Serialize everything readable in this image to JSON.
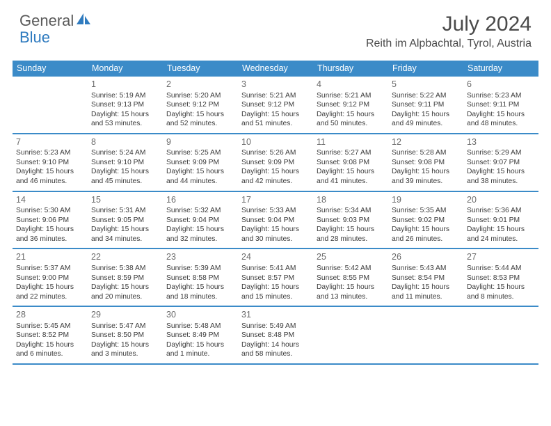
{
  "brand": {
    "word1": "General",
    "word2": "Blue"
  },
  "title": "July 2024",
  "location": "Reith im Alpbachtal, Tyrol, Austria",
  "colors": {
    "header_bg": "#3b8bc8",
    "header_text": "#ffffff",
    "rule": "#3b8bc8",
    "text": "#3a3a3a",
    "muted": "#6a6a6a",
    "brand_gray": "#5a5a5a",
    "brand_blue": "#2f7bbf",
    "background": "#ffffff"
  },
  "typography": {
    "daynum_size": 12.5,
    "body_size": 10.3,
    "title_size": 30,
    "location_size": 16,
    "dow_size": 12.5
  },
  "dow": [
    "Sunday",
    "Monday",
    "Tuesday",
    "Wednesday",
    "Thursday",
    "Friday",
    "Saturday"
  ],
  "weeks": [
    [
      {
        "n": "",
        "l1": "",
        "l2": "",
        "l3": "",
        "l4": ""
      },
      {
        "n": "1",
        "l1": "Sunrise: 5:19 AM",
        "l2": "Sunset: 9:13 PM",
        "l3": "Daylight: 15 hours",
        "l4": "and 53 minutes."
      },
      {
        "n": "2",
        "l1": "Sunrise: 5:20 AM",
        "l2": "Sunset: 9:12 PM",
        "l3": "Daylight: 15 hours",
        "l4": "and 52 minutes."
      },
      {
        "n": "3",
        "l1": "Sunrise: 5:21 AM",
        "l2": "Sunset: 9:12 PM",
        "l3": "Daylight: 15 hours",
        "l4": "and 51 minutes."
      },
      {
        "n": "4",
        "l1": "Sunrise: 5:21 AM",
        "l2": "Sunset: 9:12 PM",
        "l3": "Daylight: 15 hours",
        "l4": "and 50 minutes."
      },
      {
        "n": "5",
        "l1": "Sunrise: 5:22 AM",
        "l2": "Sunset: 9:11 PM",
        "l3": "Daylight: 15 hours",
        "l4": "and 49 minutes."
      },
      {
        "n": "6",
        "l1": "Sunrise: 5:23 AM",
        "l2": "Sunset: 9:11 PM",
        "l3": "Daylight: 15 hours",
        "l4": "and 48 minutes."
      }
    ],
    [
      {
        "n": "7",
        "l1": "Sunrise: 5:23 AM",
        "l2": "Sunset: 9:10 PM",
        "l3": "Daylight: 15 hours",
        "l4": "and 46 minutes."
      },
      {
        "n": "8",
        "l1": "Sunrise: 5:24 AM",
        "l2": "Sunset: 9:10 PM",
        "l3": "Daylight: 15 hours",
        "l4": "and 45 minutes."
      },
      {
        "n": "9",
        "l1": "Sunrise: 5:25 AM",
        "l2": "Sunset: 9:09 PM",
        "l3": "Daylight: 15 hours",
        "l4": "and 44 minutes."
      },
      {
        "n": "10",
        "l1": "Sunrise: 5:26 AM",
        "l2": "Sunset: 9:09 PM",
        "l3": "Daylight: 15 hours",
        "l4": "and 42 minutes."
      },
      {
        "n": "11",
        "l1": "Sunrise: 5:27 AM",
        "l2": "Sunset: 9:08 PM",
        "l3": "Daylight: 15 hours",
        "l4": "and 41 minutes."
      },
      {
        "n": "12",
        "l1": "Sunrise: 5:28 AM",
        "l2": "Sunset: 9:08 PM",
        "l3": "Daylight: 15 hours",
        "l4": "and 39 minutes."
      },
      {
        "n": "13",
        "l1": "Sunrise: 5:29 AM",
        "l2": "Sunset: 9:07 PM",
        "l3": "Daylight: 15 hours",
        "l4": "and 38 minutes."
      }
    ],
    [
      {
        "n": "14",
        "l1": "Sunrise: 5:30 AM",
        "l2": "Sunset: 9:06 PM",
        "l3": "Daylight: 15 hours",
        "l4": "and 36 minutes."
      },
      {
        "n": "15",
        "l1": "Sunrise: 5:31 AM",
        "l2": "Sunset: 9:05 PM",
        "l3": "Daylight: 15 hours",
        "l4": "and 34 minutes."
      },
      {
        "n": "16",
        "l1": "Sunrise: 5:32 AM",
        "l2": "Sunset: 9:04 PM",
        "l3": "Daylight: 15 hours",
        "l4": "and 32 minutes."
      },
      {
        "n": "17",
        "l1": "Sunrise: 5:33 AM",
        "l2": "Sunset: 9:04 PM",
        "l3": "Daylight: 15 hours",
        "l4": "and 30 minutes."
      },
      {
        "n": "18",
        "l1": "Sunrise: 5:34 AM",
        "l2": "Sunset: 9:03 PM",
        "l3": "Daylight: 15 hours",
        "l4": "and 28 minutes."
      },
      {
        "n": "19",
        "l1": "Sunrise: 5:35 AM",
        "l2": "Sunset: 9:02 PM",
        "l3": "Daylight: 15 hours",
        "l4": "and 26 minutes."
      },
      {
        "n": "20",
        "l1": "Sunrise: 5:36 AM",
        "l2": "Sunset: 9:01 PM",
        "l3": "Daylight: 15 hours",
        "l4": "and 24 minutes."
      }
    ],
    [
      {
        "n": "21",
        "l1": "Sunrise: 5:37 AM",
        "l2": "Sunset: 9:00 PM",
        "l3": "Daylight: 15 hours",
        "l4": "and 22 minutes."
      },
      {
        "n": "22",
        "l1": "Sunrise: 5:38 AM",
        "l2": "Sunset: 8:59 PM",
        "l3": "Daylight: 15 hours",
        "l4": "and 20 minutes."
      },
      {
        "n": "23",
        "l1": "Sunrise: 5:39 AM",
        "l2": "Sunset: 8:58 PM",
        "l3": "Daylight: 15 hours",
        "l4": "and 18 minutes."
      },
      {
        "n": "24",
        "l1": "Sunrise: 5:41 AM",
        "l2": "Sunset: 8:57 PM",
        "l3": "Daylight: 15 hours",
        "l4": "and 15 minutes."
      },
      {
        "n": "25",
        "l1": "Sunrise: 5:42 AM",
        "l2": "Sunset: 8:55 PM",
        "l3": "Daylight: 15 hours",
        "l4": "and 13 minutes."
      },
      {
        "n": "26",
        "l1": "Sunrise: 5:43 AM",
        "l2": "Sunset: 8:54 PM",
        "l3": "Daylight: 15 hours",
        "l4": "and 11 minutes."
      },
      {
        "n": "27",
        "l1": "Sunrise: 5:44 AM",
        "l2": "Sunset: 8:53 PM",
        "l3": "Daylight: 15 hours",
        "l4": "and 8 minutes."
      }
    ],
    [
      {
        "n": "28",
        "l1": "Sunrise: 5:45 AM",
        "l2": "Sunset: 8:52 PM",
        "l3": "Daylight: 15 hours",
        "l4": "and 6 minutes."
      },
      {
        "n": "29",
        "l1": "Sunrise: 5:47 AM",
        "l2": "Sunset: 8:50 PM",
        "l3": "Daylight: 15 hours",
        "l4": "and 3 minutes."
      },
      {
        "n": "30",
        "l1": "Sunrise: 5:48 AM",
        "l2": "Sunset: 8:49 PM",
        "l3": "Daylight: 15 hours",
        "l4": "and 1 minute."
      },
      {
        "n": "31",
        "l1": "Sunrise: 5:49 AM",
        "l2": "Sunset: 8:48 PM",
        "l3": "Daylight: 14 hours",
        "l4": "and 58 minutes."
      },
      {
        "n": "",
        "l1": "",
        "l2": "",
        "l3": "",
        "l4": ""
      },
      {
        "n": "",
        "l1": "",
        "l2": "",
        "l3": "",
        "l4": ""
      },
      {
        "n": "",
        "l1": "",
        "l2": "",
        "l3": "",
        "l4": ""
      }
    ]
  ]
}
